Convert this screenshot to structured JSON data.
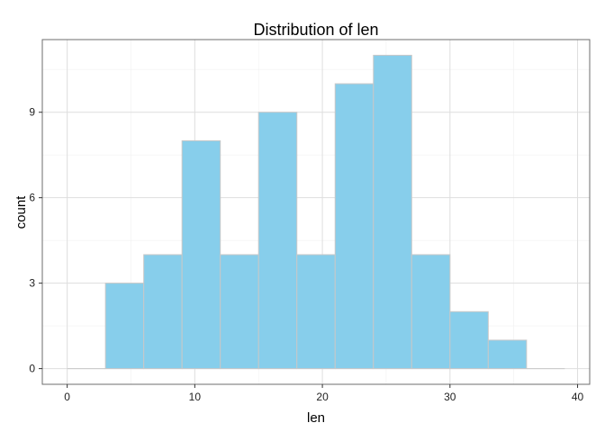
{
  "chart_data": {
    "type": "bar",
    "title": "Distribution of len",
    "xlabel": "len",
    "ylabel": "count",
    "bin_width": 3,
    "bins": [
      {
        "start": 0,
        "end": 3,
        "count": 0
      },
      {
        "start": 3,
        "end": 6,
        "count": 3
      },
      {
        "start": 6,
        "end": 9,
        "count": 4
      },
      {
        "start": 9,
        "end": 12,
        "count": 8
      },
      {
        "start": 12,
        "end": 15,
        "count": 4
      },
      {
        "start": 15,
        "end": 18,
        "count": 9
      },
      {
        "start": 18,
        "end": 21,
        "count": 4
      },
      {
        "start": 21,
        "end": 24,
        "count": 10
      },
      {
        "start": 24,
        "end": 27,
        "count": 11
      },
      {
        "start": 27,
        "end": 30,
        "count": 4
      },
      {
        "start": 30,
        "end": 33,
        "count": 2
      },
      {
        "start": 33,
        "end": 36,
        "count": 1
      },
      {
        "start": 36,
        "end": 39,
        "count": 0
      }
    ],
    "xlim": [
      -1.95,
      40.95
    ],
    "ylim": [
      -0.55,
      11.55
    ],
    "x_ticks": [
      0,
      10,
      20,
      30,
      40
    ],
    "x_tick_labels": [
      "0",
      "10",
      "20",
      "30",
      "40"
    ],
    "y_ticks": [
      0,
      3,
      6,
      9
    ],
    "y_tick_labels": [
      "0",
      "3",
      "6",
      "9"
    ],
    "x_minor_ticks": [
      5,
      15,
      25,
      35
    ],
    "y_minor_ticks": [
      1.5,
      4.5,
      7.5,
      10.5
    ],
    "grid": true,
    "legend": "none",
    "colors": {
      "bar_fill": "#87CEEB",
      "bar_stroke": "#C8C8C8",
      "panel_border": "#6E6E6E",
      "grid_major": "#DEDEDE",
      "grid_minor": "#F0F0F0",
      "background": "#FFFFFF"
    }
  }
}
